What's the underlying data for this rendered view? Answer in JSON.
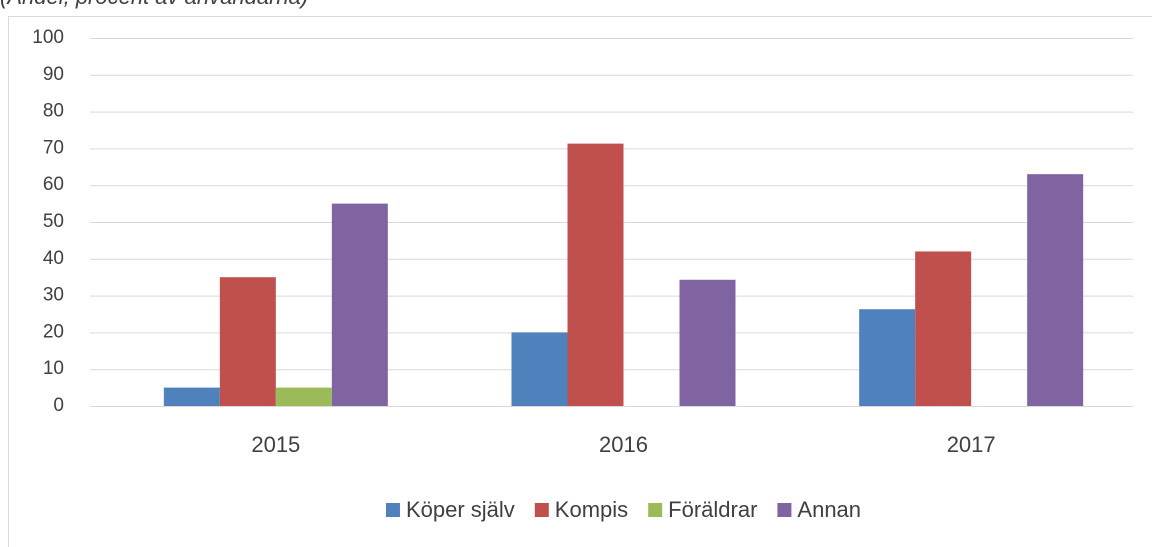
{
  "chart_data": {
    "type": "bar",
    "title": "(Andel, procent av användarna)",
    "categories": [
      "2015",
      "2016",
      "2017"
    ],
    "series": [
      {
        "name": "Köper själv",
        "color": "#4f81bd",
        "values": [
          5,
          20,
          26.3
        ]
      },
      {
        "name": "Kompis",
        "color": "#c0504d",
        "values": [
          35,
          71.3,
          42
        ]
      },
      {
        "name": "Föräldrar",
        "color": "#9bbb59",
        "values": [
          5,
          0,
          0
        ]
      },
      {
        "name": "Annan",
        "color": "#8064a2",
        "values": [
          55,
          34.3,
          63
        ]
      }
    ],
    "ylim": [
      0,
      100
    ],
    "yticks": [
      0,
      10,
      20,
      30,
      40,
      50,
      60,
      70,
      80,
      90,
      100
    ],
    "grid": true,
    "legend": "bottom"
  }
}
